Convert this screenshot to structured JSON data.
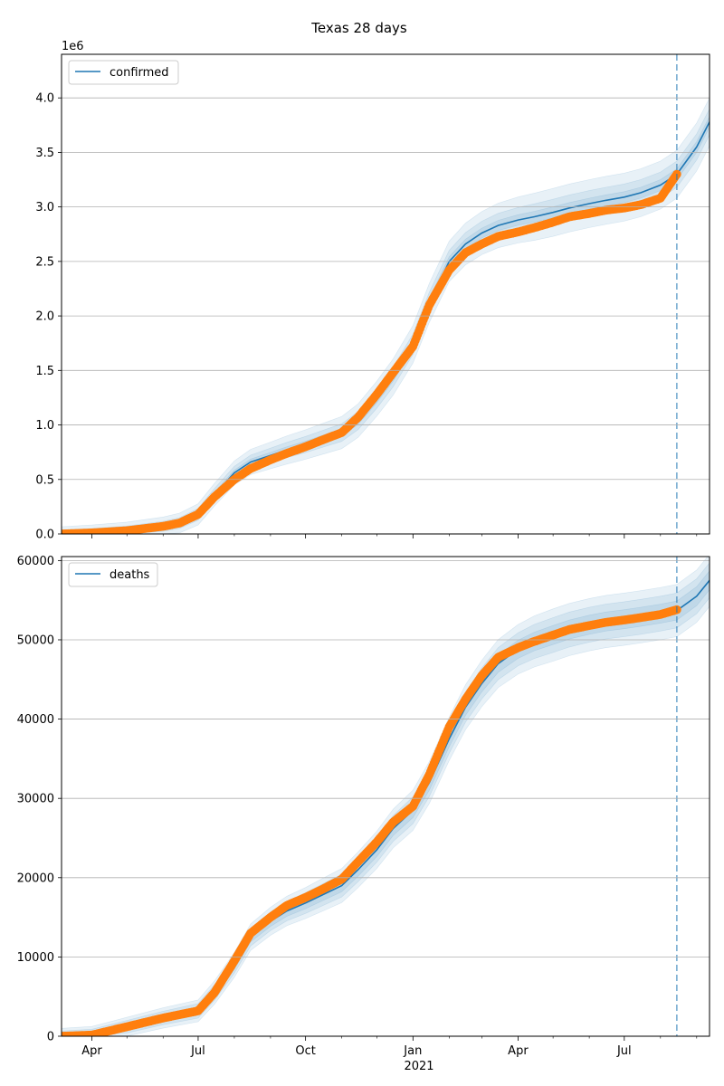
{
  "figure": {
    "title": "Texas 28 days"
  },
  "chart_data": [
    {
      "type": "line",
      "legend": [
        "confirmed"
      ],
      "legend_position": "top-left",
      "offset_label": "1e6",
      "ylim": [
        0,
        4.4
      ],
      "yticks": [
        0.0,
        0.5,
        1.0,
        1.5,
        2.0,
        2.5,
        3.0,
        3.5,
        4.0
      ],
      "ytick_labels": [
        "0.0",
        "0.5",
        "1.0",
        "1.5",
        "2.0",
        "2.5",
        "3.0",
        "3.5",
        "4.0"
      ],
      "grid": "y",
      "forecast_start": "2021-08-15",
      "series": [
        {
          "name": "confirmed",
          "role": "model",
          "color": "#1f77b4",
          "x": [
            "2020-03-06",
            "2020-04-01",
            "2020-05-01",
            "2020-06-01",
            "2020-06-15",
            "2020-07-01",
            "2020-07-15",
            "2020-08-01",
            "2020-08-15",
            "2020-09-01",
            "2020-09-15",
            "2020-10-01",
            "2020-10-15",
            "2020-11-01",
            "2020-11-15",
            "2020-12-01",
            "2020-12-15",
            "2021-01-01",
            "2021-01-15",
            "2021-02-01",
            "2021-02-15",
            "2021-03-01",
            "2021-03-15",
            "2021-04-01",
            "2021-04-15",
            "2021-05-01",
            "2021-05-15",
            "2021-06-01",
            "2021-06-15",
            "2021-07-01",
            "2021-07-15",
            "2021-08-01",
            "2021-08-15",
            "2021-09-01",
            "2021-09-12"
          ],
          "y": [
            0.0,
            0.01,
            0.03,
            0.07,
            0.1,
            0.18,
            0.36,
            0.56,
            0.66,
            0.72,
            0.77,
            0.82,
            0.87,
            0.93,
            1.04,
            1.24,
            1.44,
            1.74,
            2.12,
            2.5,
            2.66,
            2.76,
            2.83,
            2.88,
            2.91,
            2.95,
            2.99,
            3.03,
            3.06,
            3.09,
            3.13,
            3.2,
            3.3,
            3.55,
            3.78
          ],
          "band_widths": [
            0.05,
            0.12,
            0.22
          ]
        },
        {
          "name": "",
          "role": "observed",
          "color": "#ff7f0e",
          "x": [
            "2020-03-06",
            "2020-04-01",
            "2020-05-01",
            "2020-06-01",
            "2020-06-15",
            "2020-07-01",
            "2020-07-15",
            "2020-08-01",
            "2020-08-15",
            "2020-09-01",
            "2020-09-15",
            "2020-10-01",
            "2020-10-15",
            "2020-11-01",
            "2020-11-15",
            "2020-12-01",
            "2020-12-15",
            "2021-01-01",
            "2021-01-15",
            "2021-02-01",
            "2021-02-15",
            "2021-03-01",
            "2021-03-15",
            "2021-04-01",
            "2021-04-15",
            "2021-05-01",
            "2021-05-15",
            "2021-06-01",
            "2021-06-15",
            "2021-07-01",
            "2021-07-15",
            "2021-08-01",
            "2021-08-15"
          ],
          "y": [
            0.0,
            0.01,
            0.03,
            0.07,
            0.1,
            0.18,
            0.34,
            0.5,
            0.6,
            0.68,
            0.74,
            0.8,
            0.86,
            0.93,
            1.07,
            1.28,
            1.48,
            1.72,
            2.1,
            2.42,
            2.58,
            2.66,
            2.73,
            2.77,
            2.81,
            2.86,
            2.91,
            2.94,
            2.97,
            2.99,
            3.02,
            3.08,
            3.3
          ]
        }
      ]
    },
    {
      "type": "line",
      "legend": [
        "deaths"
      ],
      "legend_position": "top-left",
      "ylim": [
        0,
        60500
      ],
      "yticks": [
        0,
        10000,
        20000,
        30000,
        40000,
        50000,
        60000
      ],
      "ytick_labels": [
        "0",
        "10000",
        "20000",
        "30000",
        "40000",
        "50000",
        "60000"
      ],
      "xtick_labels": [
        "Apr",
        "Jul",
        "Oct",
        "Jan",
        "Apr",
        "Jul"
      ],
      "xtick_dates": [
        "2020-04-01",
        "2020-07-01",
        "2020-10-01",
        "2021-01-01",
        "2021-04-01",
        "2021-07-01"
      ],
      "year_label": "2021",
      "grid": "y",
      "forecast_start": "2021-08-15",
      "series": [
        {
          "name": "deaths",
          "role": "model",
          "color": "#1f77b4",
          "x": [
            "2020-03-06",
            "2020-04-01",
            "2020-05-01",
            "2020-06-01",
            "2020-07-01",
            "2020-07-15",
            "2020-08-01",
            "2020-08-15",
            "2020-09-01",
            "2020-09-15",
            "2020-10-01",
            "2020-10-15",
            "2020-11-01",
            "2020-11-15",
            "2020-12-01",
            "2020-12-15",
            "2021-01-01",
            "2021-01-15",
            "2021-02-01",
            "2021-02-15",
            "2021-03-01",
            "2021-03-15",
            "2021-04-01",
            "2021-04-15",
            "2021-05-01",
            "2021-05-15",
            "2021-06-01",
            "2021-06-15",
            "2021-07-01",
            "2021-07-15",
            "2021-08-01",
            "2021-08-15",
            "2021-09-01",
            "2021-09-12"
          ],
          "y": [
            0,
            150,
            1200,
            2300,
            3200,
            5500,
            9000,
            12500,
            14500,
            15800,
            16800,
            17800,
            19000,
            21000,
            23500,
            26200,
            28500,
            32000,
            37500,
            41500,
            44500,
            47000,
            48800,
            49800,
            50600,
            51300,
            51900,
            52300,
            52600,
            52900,
            53300,
            53700,
            55500,
            57500
          ],
          "band_widths": [
            1200,
            2200,
            3300
          ]
        },
        {
          "name": "",
          "role": "observed",
          "color": "#ff7f0e",
          "x": [
            "2020-03-06",
            "2020-04-01",
            "2020-05-01",
            "2020-06-01",
            "2020-07-01",
            "2020-07-15",
            "2020-08-01",
            "2020-08-15",
            "2020-09-01",
            "2020-09-15",
            "2020-10-01",
            "2020-10-15",
            "2020-11-01",
            "2020-11-15",
            "2020-12-01",
            "2020-12-15",
            "2021-01-01",
            "2021-01-15",
            "2021-02-01",
            "2021-02-15",
            "2021-03-01",
            "2021-03-15",
            "2021-04-01",
            "2021-04-15",
            "2021-05-01",
            "2021-05-15",
            "2021-06-01",
            "2021-06-15",
            "2021-07-01",
            "2021-07-15",
            "2021-08-01",
            "2021-08-15"
          ],
          "y": [
            0,
            150,
            1200,
            2300,
            3200,
            5500,
            9500,
            13000,
            15000,
            16500,
            17500,
            18500,
            19800,
            22000,
            24500,
            27000,
            29000,
            33000,
            39000,
            42500,
            45500,
            47800,
            49000,
            49800,
            50600,
            51300,
            51800,
            52200,
            52500,
            52800,
            53200,
            53800
          ]
        }
      ]
    }
  ]
}
